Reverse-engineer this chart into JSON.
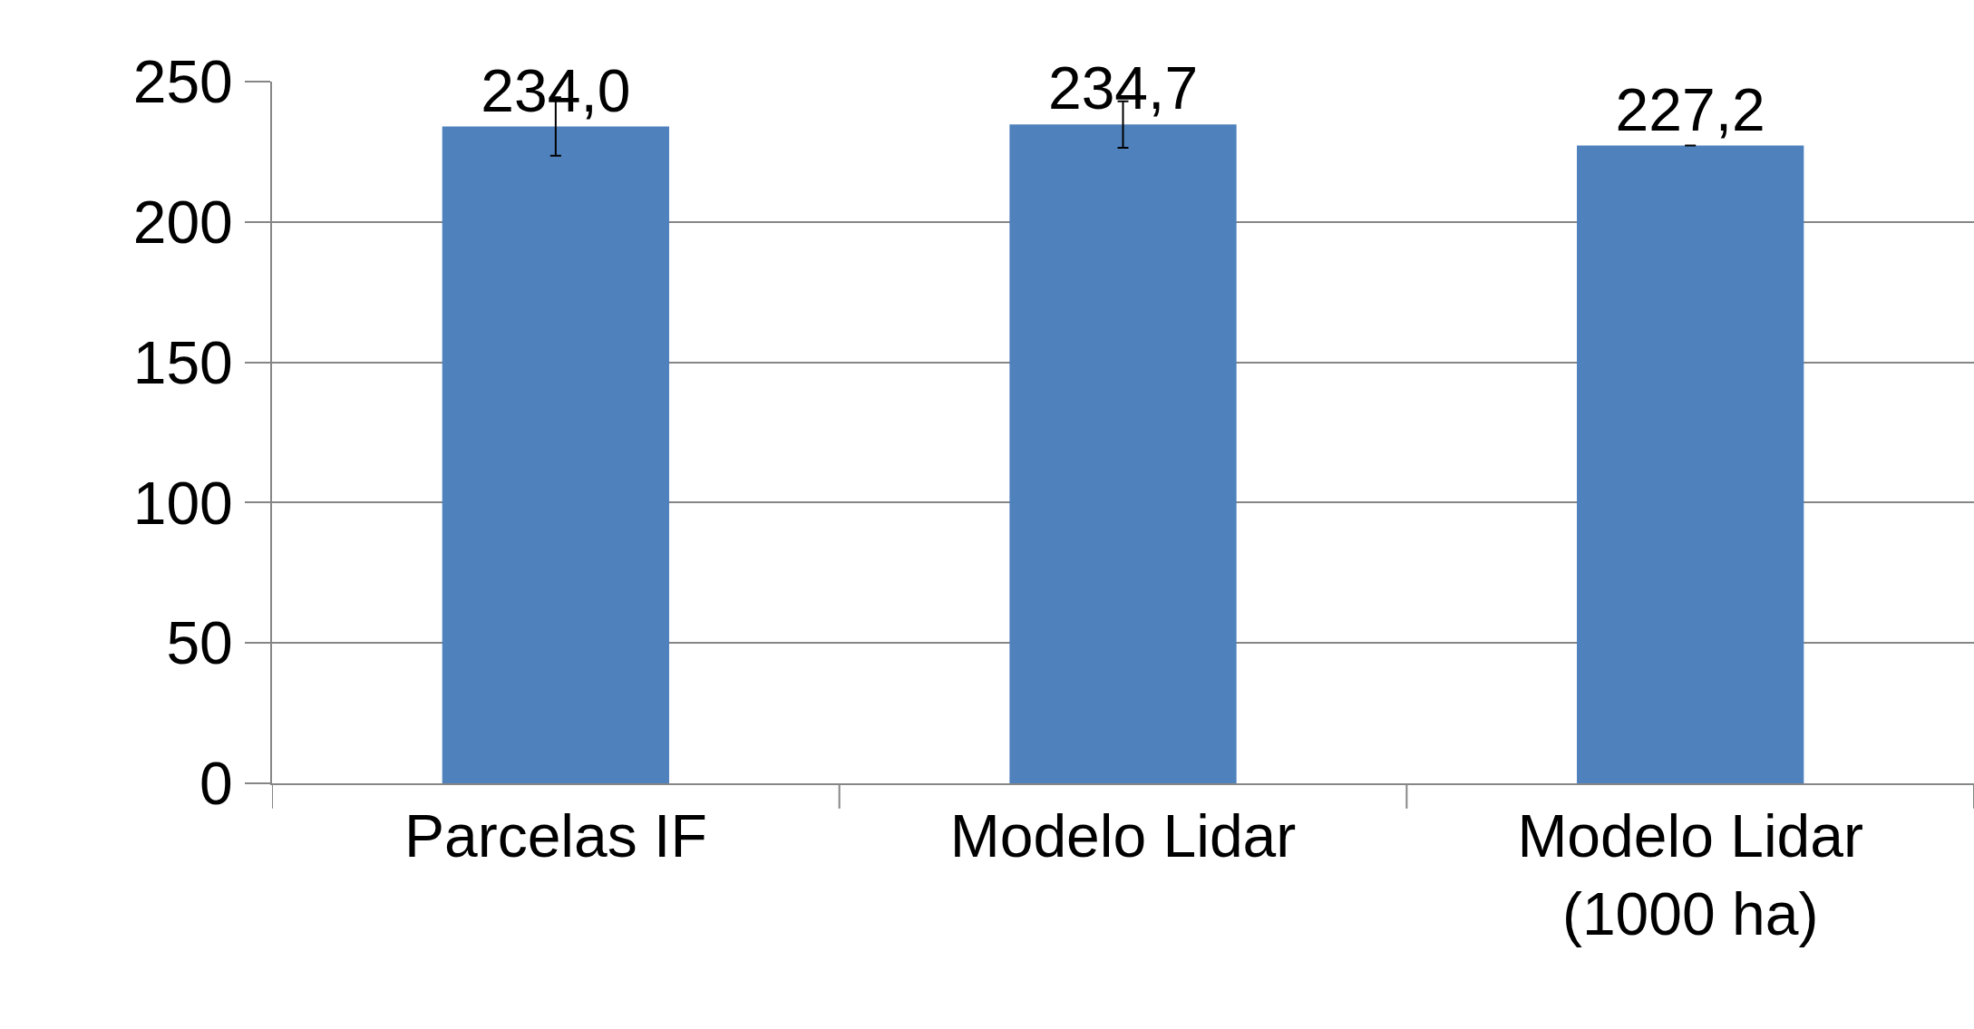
{
  "chart_data": {
    "type": "bar",
    "categories": [
      "Parcelas IF",
      "Modelo Lidar",
      "Modelo Lidar (1000 ha)"
    ],
    "values": [
      234.0,
      234.7,
      227.2
    ],
    "value_labels": [
      "234,0",
      "234,7",
      "227,2"
    ],
    "errors": [
      10.4,
      8.3,
      null
    ],
    "color": "#4f81bd",
    "ylim": [
      0,
      250
    ],
    "yticks": [
      0,
      50,
      100,
      150,
      200,
      250
    ],
    "grid": "y"
  }
}
